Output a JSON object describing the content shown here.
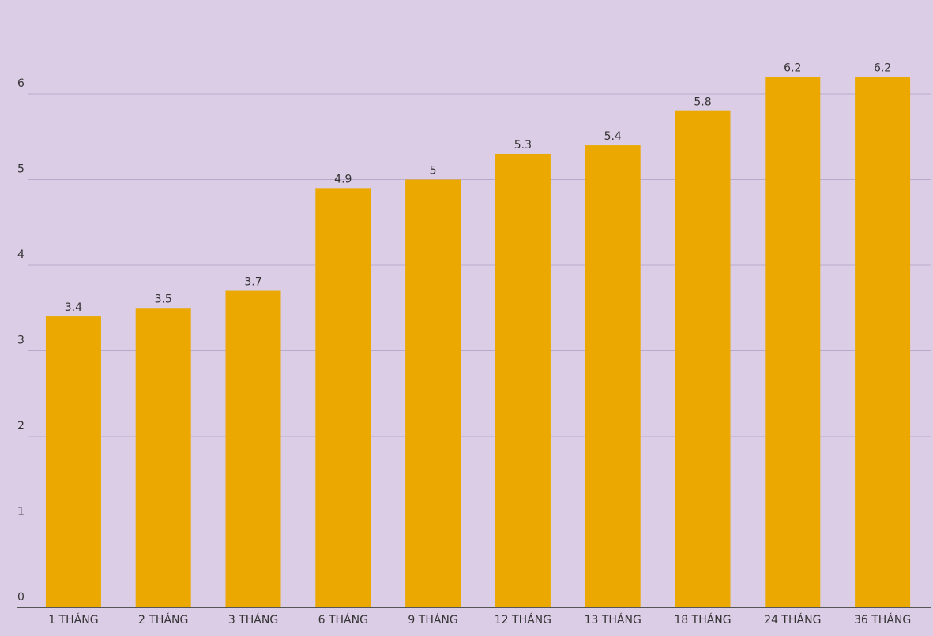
{
  "chart_data": {
    "type": "bar",
    "categories": [
      "1 THÁNG",
      "2 THÁNG",
      "3 THÁNG",
      "6 THÁNG",
      "9 THÁNG",
      "12 THÁNG",
      "13 THÁNG",
      "18 THÁNG",
      "24 THÁNG",
      "36 THÁNG"
    ],
    "values": [
      3.4,
      3.5,
      3.7,
      4.9,
      5,
      5.3,
      5.4,
      5.8,
      6.2,
      6.2
    ],
    "color": "#eaa800",
    "ylim": [
      0,
      7
    ],
    "yticks": [
      0,
      1,
      2,
      3,
      4,
      5,
      6
    ],
    "grid": true
  }
}
